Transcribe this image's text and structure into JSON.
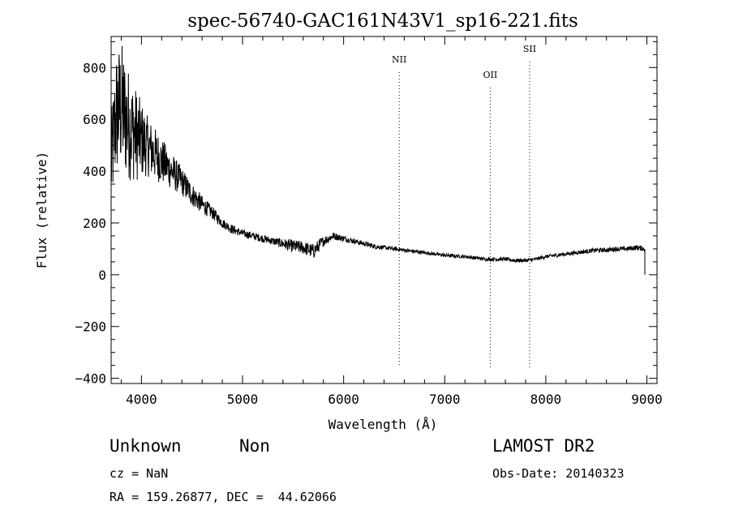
{
  "chart_data": {
    "type": "line",
    "title": "spec-56740-GAC161N43V1_sp16-221.fits",
    "xlabel": "Wavelength (Å)",
    "ylabel": "Flux (relative)",
    "xlim": [
      3700,
      9100
    ],
    "ylim": [
      -420,
      920
    ],
    "x_ticks": [
      4000,
      5000,
      6000,
      7000,
      8000,
      9000
    ],
    "y_ticks": [
      -400,
      -200,
      0,
      200,
      400,
      600,
      800
    ],
    "x_tick_labels": [
      "4000",
      "5000",
      "6000",
      "7000",
      "8000",
      "9000"
    ],
    "y_tick_labels": [
      "−400",
      "−200",
      "0",
      "200",
      "400",
      "600",
      "800"
    ],
    "grid": false,
    "line_color": "#000000",
    "series": [
      {
        "x": [
          3700,
          3750,
          3800,
          3850,
          3900,
          3950,
          4000,
          4050,
          4100,
          4150,
          4200,
          4300,
          4400,
          4500,
          4600,
          4700,
          4800,
          4900,
          5000,
          5100,
          5200,
          5300,
          5400,
          5500,
          5600,
          5700,
          5750,
          5800,
          5900,
          6000,
          6100,
          6200,
          6300,
          6400,
          6500,
          6600,
          6800,
          7000,
          7200,
          7400,
          7500,
          7600,
          7700,
          7800,
          7900,
          8000,
          8100,
          8200,
          8300,
          8400,
          8500,
          8600,
          8700,
          8800,
          8900,
          8980
        ],
        "y": [
          420,
          620,
          650,
          600,
          560,
          540,
          520,
          500,
          480,
          460,
          440,
          400,
          360,
          310,
          270,
          240,
          200,
          175,
          160,
          150,
          140,
          130,
          120,
          110,
          105,
          90,
          110,
          130,
          150,
          140,
          130,
          120,
          110,
          105,
          100,
          95,
          85,
          75,
          70,
          60,
          60,
          60,
          55,
          55,
          60,
          70,
          75,
          80,
          85,
          90,
          95,
          95,
          100,
          100,
          105,
          100
        ],
        "noise": [
          180,
          250,
          260,
          230,
          200,
          180,
          150,
          120,
          110,
          100,
          90,
          70,
          55,
          45,
          35,
          25,
          18,
          18,
          15,
          15,
          15,
          15,
          20,
          25,
          25,
          30,
          25,
          20,
          15,
          12,
          10,
          10,
          10,
          8,
          8,
          8,
          7,
          7,
          7,
          7,
          7,
          7,
          7,
          7,
          7,
          7,
          8,
          8,
          8,
          8,
          8,
          9,
          9,
          9,
          10,
          10
        ]
      }
    ],
    "vlines": [
      {
        "x": 6550,
        "label": "NII",
        "label_y": 820
      },
      {
        "x": 7450,
        "label": "OII",
        "label_y": 760
      },
      {
        "x": 7840,
        "label": "SII",
        "label_y": 860
      }
    ]
  },
  "info": {
    "class": "Unknown",
    "subclass": "Non",
    "survey": "LAMOST DR2",
    "cz": "cz = NaN",
    "obs_date": "Obs-Date: 20140323",
    "radec": "RA = 159.26877, DEC =  44.62066"
  }
}
